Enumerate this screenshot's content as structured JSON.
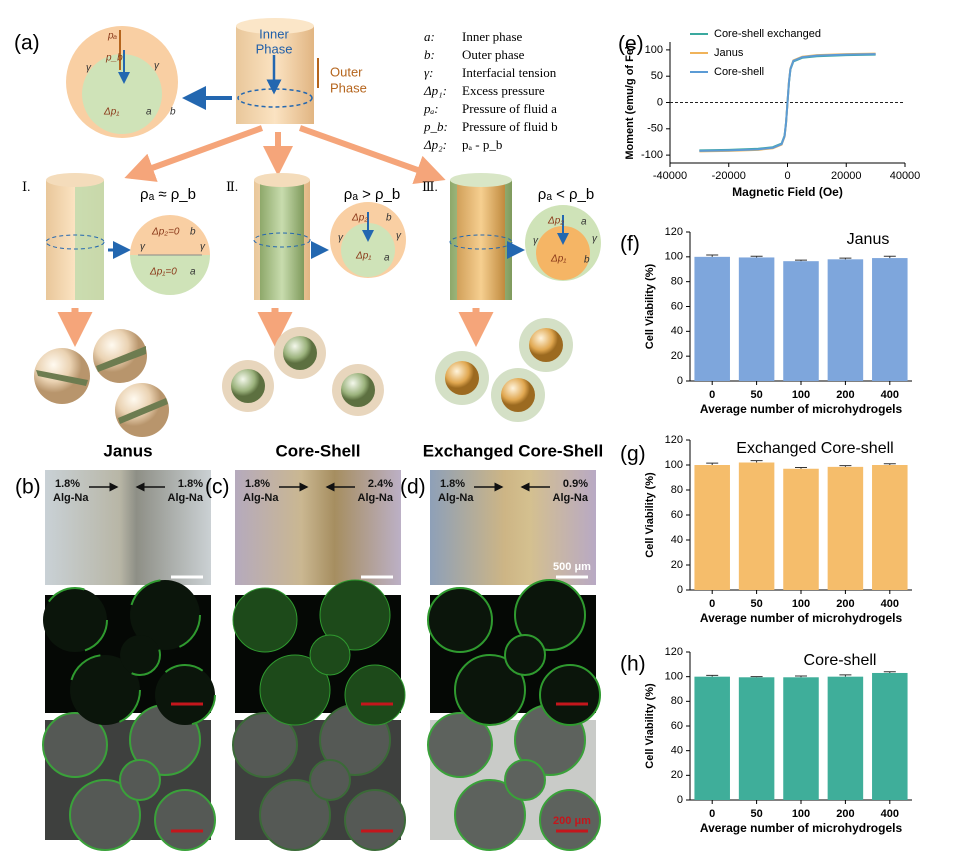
{
  "panel_a": {
    "label": "(a)",
    "inner_phase": [
      "Inner",
      "Phase"
    ],
    "outer_phase": [
      "Outer",
      "Phase"
    ],
    "glossary": [
      [
        "a:",
        "Inner phase"
      ],
      [
        "b:",
        "Outer phase"
      ],
      [
        "γ:",
        "Interfacial tension"
      ],
      [
        "Δp₁:",
        "Excess pressure"
      ],
      [
        "pₐ:",
        "Pressure of fluid a"
      ],
      [
        "p_b:",
        "Pressure of fluid b"
      ],
      [
        "Δp₂:",
        "pₐ - p_b"
      ]
    ],
    "top_circle": {
      "pa": "pₐ",
      "pb": "p_b",
      "dp1": "Δp₁",
      "gamma_left": "γ",
      "gamma_right": "γ",
      "a": "a",
      "b": "b"
    },
    "cases": [
      {
        "numeral": "Ⅰ.",
        "condition": "ρₐ ≈ ρ_b",
        "labels": {
          "dp2": "Δp₂=0",
          "b": "b",
          "gamma_left": "γ",
          "gamma_right": "γ",
          "dp1": "Δp₁=0",
          "a": "a"
        }
      },
      {
        "numeral": "Ⅱ.",
        "condition": "ρₐ > ρ_b",
        "labels": {
          "dp2": "Δp₂",
          "b": "b",
          "gamma_left": "γ",
          "gamma_right": "γ",
          "dp1": "Δp₁",
          "a": "a"
        }
      },
      {
        "numeral": "Ⅲ.",
        "condition": "ρₐ < ρ_b",
        "labels": {
          "dp2": "Δp₂",
          "b": "b",
          "gamma_left": "γ",
          "gamma_right": "γ",
          "dp1": "Δp₁",
          "a": "a"
        }
      }
    ]
  },
  "micrographs": [
    {
      "panel": "(b)",
      "title": "Janus",
      "left": [
        "1.8%",
        "Alg-Na"
      ],
      "right": [
        "1.8%",
        "Alg-Na"
      ]
    },
    {
      "panel": "(c)",
      "title": "Core-Shell",
      "left": [
        "1.8%",
        "Alg-Na"
      ],
      "right": [
        "2.4%",
        "Alg-Na"
      ]
    },
    {
      "panel": "(d)",
      "title": "Exchanged Core-Shell",
      "left": [
        "1.8%",
        "Alg-Na"
      ],
      "right": [
        "0.9%",
        "Alg-Na"
      ],
      "scale_top": "500 μm",
      "scale_bottom": "200 μm"
    }
  ],
  "chart_data": [
    {
      "type": "line",
      "panel": "(e)",
      "x_label": "Magnetic Field (Oe)",
      "y_label": "Moment (emu/g of Fe)",
      "x": [
        -30000,
        -20000,
        -10000,
        -5000,
        -2000,
        -1000,
        -500,
        0,
        500,
        1000,
        2000,
        5000,
        10000,
        20000,
        30000
      ],
      "series": [
        {
          "name": "Core-shell exchanged",
          "color": "#3aa99f",
          "values": [
            -91,
            -90,
            -88,
            -85,
            -78,
            -63,
            -38,
            0,
            38,
            63,
            78,
            85,
            88,
            90,
            91
          ]
        },
        {
          "name": "Janus",
          "color": "#f0b35a",
          "values": [
            -93,
            -92,
            -90,
            -87,
            -80,
            -65,
            -40,
            0,
            40,
            65,
            80,
            87,
            90,
            92,
            93
          ]
        },
        {
          "name": "Core-shell",
          "color": "#5b9bd5",
          "values": [
            -92,
            -91,
            -89,
            -86,
            -79,
            -64,
            -39,
            0,
            39,
            64,
            79,
            86,
            89,
            91,
            92
          ]
        }
      ],
      "xlim": [
        -40000,
        40000
      ],
      "xticks": [
        -40000,
        -20000,
        0,
        20000,
        40000
      ],
      "ylim": [
        -115,
        115
      ],
      "yticks": [
        -100,
        -50,
        0,
        50,
        100
      ],
      "hline": 0
    },
    {
      "type": "bar",
      "panel": "(f)",
      "label": "Janus",
      "x_label": "Average number of microhydrogels",
      "y_label": "Cell Viability (%)",
      "color": "#7ea6dc",
      "categories": [
        "0",
        "50",
        "100",
        "200",
        "400"
      ],
      "values": [
        100,
        99.5,
        96.5,
        98,
        99
      ],
      "errors": [
        1.5,
        1,
        0.8,
        1,
        1.5
      ],
      "ylim": [
        0,
        120
      ],
      "yticks": [
        0,
        20,
        40,
        60,
        80,
        100,
        120
      ]
    },
    {
      "type": "bar",
      "panel": "(g)",
      "label": "Exchanged Core-shell",
      "x_label": "Average number of microhydrogels",
      "y_label": "Cell Viability (%)",
      "color": "#f5bd6b",
      "categories": [
        "0",
        "50",
        "100",
        "200",
        "400"
      ],
      "values": [
        100,
        102,
        97,
        98.5,
        100
      ],
      "errors": [
        1.5,
        1.5,
        1,
        1,
        1
      ],
      "ylim": [
        0,
        120
      ],
      "yticks": [
        0,
        20,
        40,
        60,
        80,
        100,
        120
      ]
    },
    {
      "type": "bar",
      "panel": "(h)",
      "label": "Core-shell",
      "x_label": "Average number of microhydrogels",
      "y_label": "Cell Viability (%)",
      "color": "#3fae9a",
      "categories": [
        "0",
        "50",
        "100",
        "200",
        "400"
      ],
      "values": [
        100,
        99.5,
        99.5,
        100,
        103
      ],
      "errors": [
        1,
        0.5,
        1,
        1.5,
        1
      ],
      "ylim": [
        0,
        120
      ],
      "yticks": [
        0,
        20,
        40,
        60,
        80,
        100,
        120
      ]
    }
  ]
}
